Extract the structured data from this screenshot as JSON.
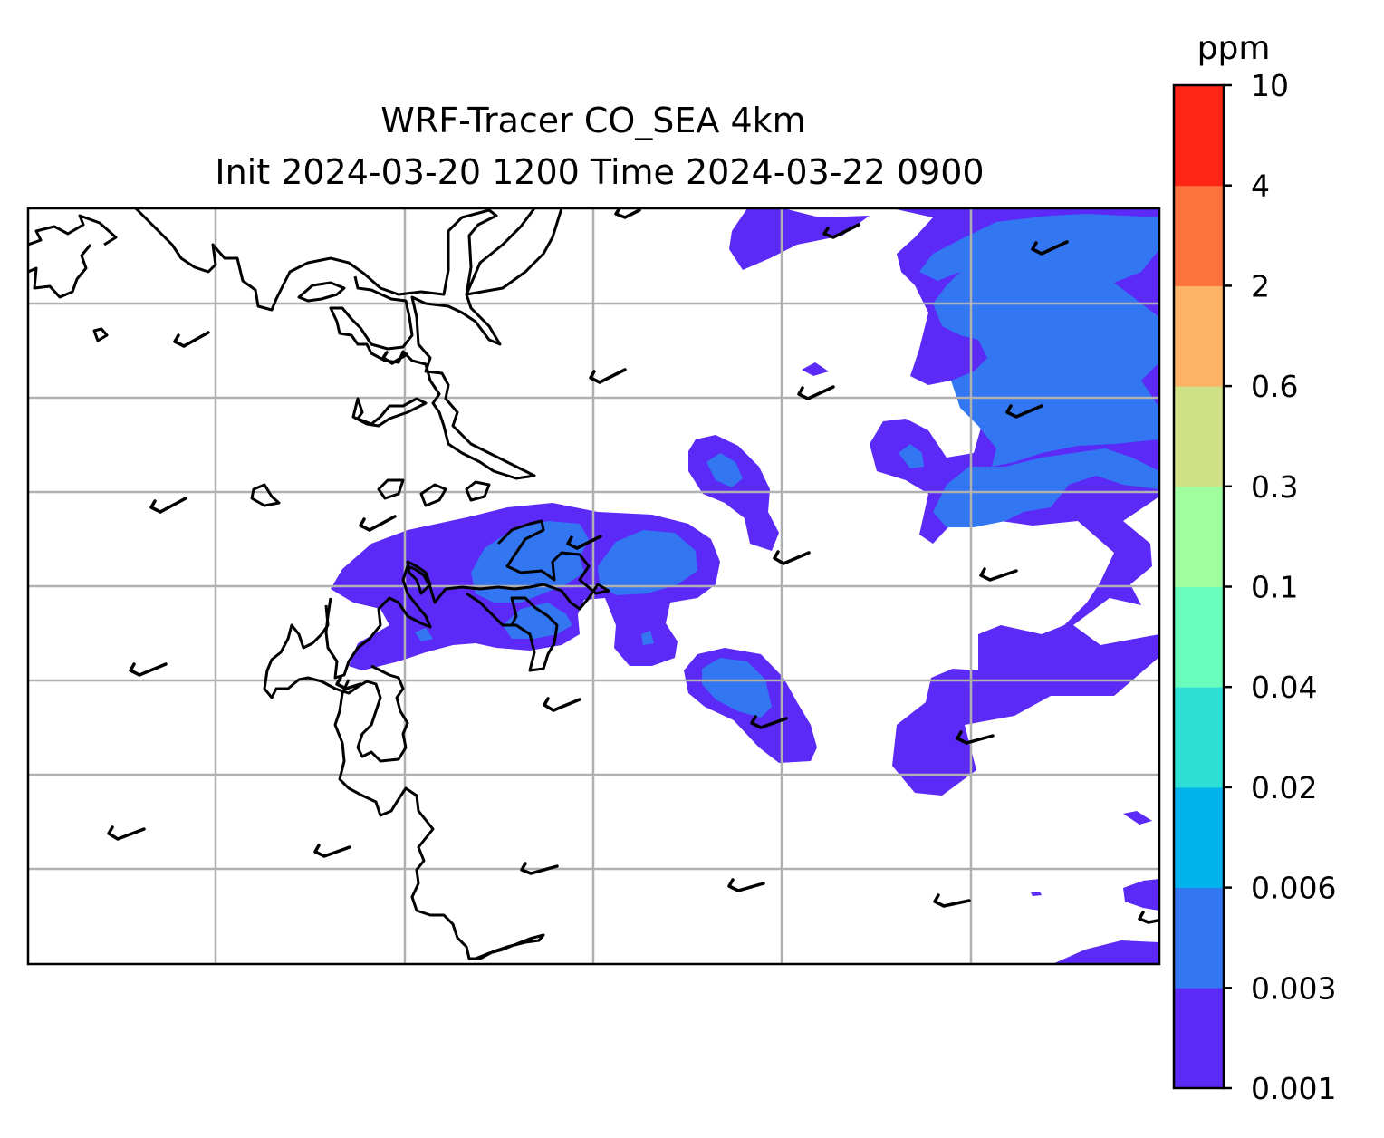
{
  "title": {
    "line1": "WRF-Tracer CO_SEA 4km",
    "line2": "Init 2024-03-20 1200 Time 2024-03-22 0900"
  },
  "colorbar": {
    "unit": "ppm",
    "levels": [
      "0.001",
      "0.003",
      "0.006",
      "0.02",
      "0.04",
      "0.1",
      "0.3",
      "0.6",
      "2",
      "4",
      "10"
    ],
    "colors": [
      "#5b2af7",
      "#3276f2",
      "#00b3ed",
      "#2ddfd5",
      "#69fdbc",
      "#9ffe9e",
      "#d0e185",
      "#fdb266",
      "#fe733d",
      "#ff2616"
    ]
  },
  "chart_data": {
    "type": "heatmap",
    "variable": "CO tracer concentration",
    "unit": "ppm",
    "contour_levels": [
      0.001,
      0.003,
      0.006,
      0.02,
      0.04,
      0.1,
      0.3,
      0.6,
      2,
      4,
      10
    ],
    "visible_levels": [
      0.001,
      0.003
    ],
    "grid": true,
    "colorbar_position": "right",
    "overlays": [
      "coastlines",
      "wind-barbs"
    ]
  }
}
